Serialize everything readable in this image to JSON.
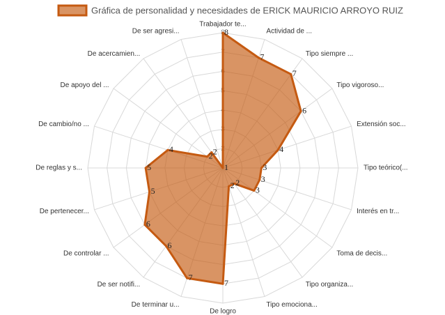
{
  "chart_data": {
    "type": "radar",
    "categories": [
      "Trabajador te...",
      "Actividad de ...",
      "Tipo siempre ...",
      "Tipo vigoroso...",
      "Extensión soc...",
      "Tipo teórico(...",
      "Interés en tr...",
      "Toma de decis...",
      "Tipo organiza...",
      "Tipo emociona...",
      "De logro",
      "De terminar u...",
      "De ser notifi...",
      "De controlar ...",
      "De pertenecer...",
      "De reglas y s...",
      "De cambio/no ...",
      "De apoyo del ...",
      "De acercamien...",
      "De ser agresi..."
    ],
    "series": [
      {
        "name": "Gráfica de personalidad y necesidades de ERICK MAURICIO ARROYO RUIZ",
        "color": "#c55a11",
        "values": [
          8,
          7,
          7,
          6,
          4,
          3,
          3,
          3,
          2,
          2,
          7,
          7,
          6,
          6,
          5,
          5,
          4,
          2,
          2,
          1
        ]
      }
    ],
    "ylim": [
      1,
      8
    ],
    "yticks": [
      2,
      3,
      4,
      5,
      6,
      7,
      8
    ],
    "grid": true,
    "legend": "top"
  }
}
